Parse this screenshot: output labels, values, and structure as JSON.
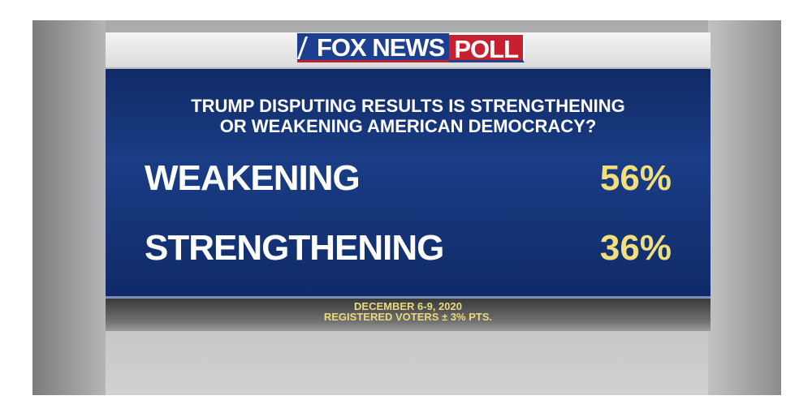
{
  "brand": {
    "name": "FOX NEWS",
    "tag": "POLL"
  },
  "question": [
    "TRUMP DISPUTING RESULTS IS STRENGTHENING",
    "OR WEAKENING AMERICAN DEMOCRACY?"
  ],
  "results": [
    {
      "label": "WEAKENING",
      "value": "56%"
    },
    {
      "label": "STRENGTHENING",
      "value": "36%"
    }
  ],
  "footer": {
    "dates": "DECEMBER 6-9, 2020",
    "sample": "REGISTERED VOTERS ± 3% PTS."
  },
  "chart_data": {
    "type": "table",
    "title": "TRUMP DISPUTING RESULTS IS STRENGTHENING OR WEAKENING AMERICAN DEMOCRACY?",
    "categories": [
      "WEAKENING",
      "STRENGTHENING"
    ],
    "values": [
      56,
      36
    ],
    "unit": "%"
  },
  "colors": {
    "panel": "#1a3d86",
    "value": "#f1df7b",
    "brand_blue": "#1d3f8f",
    "brand_red": "#c8202e"
  }
}
